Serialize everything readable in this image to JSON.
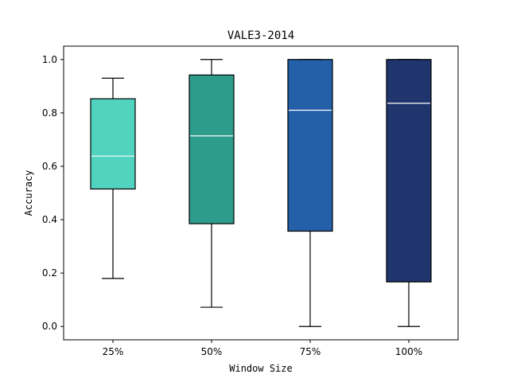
{
  "chart_data": {
    "type": "box",
    "title": "VALE3-2014",
    "xlabel": "Window Size",
    "ylabel": "Accuracy",
    "categories": [
      "25%",
      "50%",
      "75%",
      "100%"
    ],
    "ylim": [
      -0.05,
      1.05
    ],
    "yticks": [
      0.0,
      0.2,
      0.4,
      0.6,
      0.8,
      1.0
    ],
    "ytick_labels": [
      "0.0",
      "0.2",
      "0.4",
      "0.6",
      "0.8",
      "1.0"
    ],
    "grid": false,
    "legend": "none",
    "boxes": [
      {
        "whisker_low": 0.18,
        "q1": 0.515,
        "median": 0.638,
        "q3": 0.853,
        "whisker_high": 0.93,
        "color": "#52d3bf"
      },
      {
        "whisker_low": 0.072,
        "q1": 0.385,
        "median": 0.714,
        "q3": 0.942,
        "whisker_high": 1.0,
        "color": "#2e9c8a"
      },
      {
        "whisker_low": 0.0,
        "q1": 0.357,
        "median": 0.81,
        "q3": 1.0,
        "whisker_high": 1.0,
        "color": "#2460a8"
      },
      {
        "whisker_low": 0.0,
        "q1": 0.167,
        "median": 0.836,
        "q3": 1.0,
        "whisker_high": 1.0,
        "color": "#20346e"
      }
    ]
  }
}
